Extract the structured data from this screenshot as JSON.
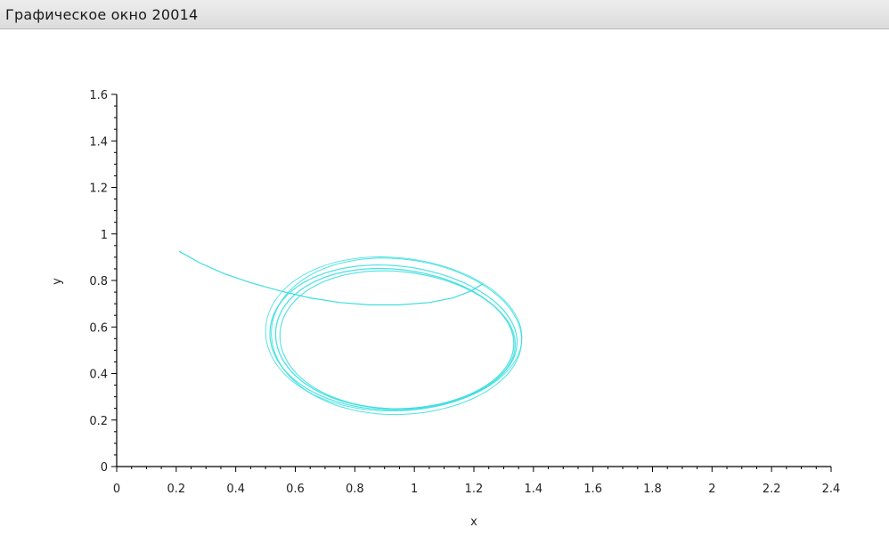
{
  "window": {
    "title": "Графическое окно 20014"
  },
  "chart_data": {
    "type": "line",
    "xlabel": "x",
    "ylabel": "y",
    "xlim": [
      0,
      2.4
    ],
    "ylim": [
      0,
      1.6
    ],
    "x_ticks": [
      "0",
      "0.2",
      "0.4",
      "0.6",
      "0.8",
      "1",
      "1.2",
      "1.4",
      "1.6",
      "1.8",
      "2",
      "2.2",
      "2.4"
    ],
    "y_ticks": [
      "0",
      "0.2",
      "0.4",
      "0.6",
      "0.8",
      "1",
      "1.2",
      "1.4",
      "1.6"
    ],
    "grid": false,
    "series": [
      {
        "color": "#3cdedf",
        "description_points": [
          [
            0.21,
            0.92
          ],
          [
            0.3,
            0.85
          ],
          [
            0.45,
            0.78
          ],
          [
            0.6,
            0.72
          ],
          [
            0.75,
            0.69
          ],
          [
            0.9,
            0.68
          ],
          [
            1.05,
            0.69
          ],
          [
            1.18,
            0.73
          ],
          [
            1.26,
            0.78
          ],
          [
            1.31,
            0.68
          ],
          [
            1.31,
            0.55
          ],
          [
            1.25,
            0.42
          ],
          [
            1.12,
            0.3
          ],
          [
            0.93,
            0.245
          ],
          [
            0.75,
            0.27
          ],
          [
            0.6,
            0.35
          ],
          [
            0.5,
            0.47
          ],
          [
            0.48,
            0.6
          ],
          [
            0.53,
            0.72
          ],
          [
            0.64,
            0.8
          ],
          [
            0.8,
            0.845
          ],
          [
            0.93,
            0.85
          ],
          [
            1.08,
            0.83
          ],
          [
            1.22,
            0.77
          ],
          [
            1.31,
            0.68
          ]
        ]
      }
    ]
  }
}
